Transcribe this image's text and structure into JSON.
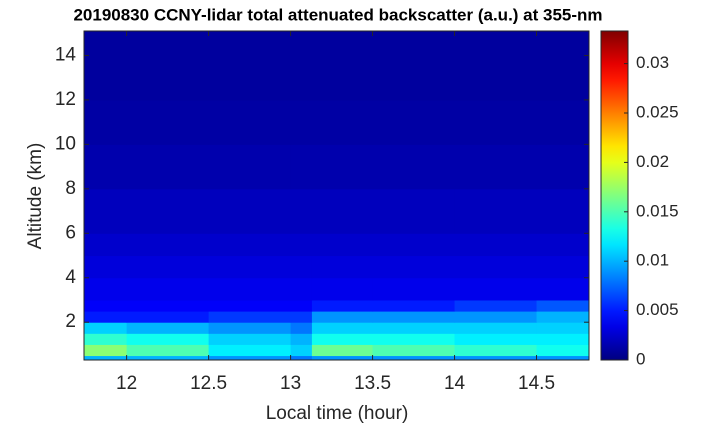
{
  "chart_data": {
    "type": "heatmap",
    "title": "20190830 CCNY-lidar total attenuated backscatter (a.u.) at 355-nm",
    "x_label": "Local time (hour)",
    "y_label": "Altitude (km)",
    "colormap": "jet",
    "x": [
      11.74,
      12.0,
      12.5,
      13.0,
      13.13,
      13.5,
      14.0,
      14.5,
      14.82
    ],
    "y": [
      0.3,
      0.5,
      1.0,
      1.5,
      2.0,
      2.5,
      3.0,
      4.0,
      5.0,
      6.0,
      8.0,
      10.0,
      12.0,
      15.1
    ],
    "z": [
      [
        0.01,
        0.01,
        0.009,
        0.008,
        0.009,
        0.009,
        0.009,
        0.009
      ],
      [
        0.017,
        0.015,
        0.012,
        0.011,
        0.016,
        0.015,
        0.014,
        0.013
      ],
      [
        0.014,
        0.013,
        0.011,
        0.01,
        0.013,
        0.013,
        0.012,
        0.012
      ],
      [
        0.011,
        0.01,
        0.009,
        0.008,
        0.011,
        0.011,
        0.011,
        0.011
      ],
      [
        0.005,
        0.005,
        0.006,
        0.006,
        0.009,
        0.009,
        0.009,
        0.01
      ],
      [
        0.004,
        0.004,
        0.004,
        0.004,
        0.005,
        0.005,
        0.006,
        0.007
      ],
      [
        0.0035,
        0.0035,
        0.0035,
        0.0035,
        0.0035,
        0.0035,
        0.0035,
        0.0035
      ],
      [
        0.003,
        0.003,
        0.003,
        0.003,
        0.003,
        0.003,
        0.003,
        0.003
      ],
      [
        0.0025,
        0.0025,
        0.0025,
        0.0025,
        0.0025,
        0.0025,
        0.0025,
        0.0025
      ],
      [
        0.002,
        0.002,
        0.002,
        0.002,
        0.002,
        0.002,
        0.002,
        0.002
      ],
      [
        0.0015,
        0.0015,
        0.0015,
        0.0015,
        0.0015,
        0.0015,
        0.0015,
        0.0015
      ],
      [
        0.0012,
        0.0012,
        0.0012,
        0.0012,
        0.0012,
        0.0012,
        0.0012,
        0.0012
      ],
      [
        0.001,
        0.001,
        0.001,
        0.001,
        0.001,
        0.001,
        0.001,
        0.001
      ]
    ],
    "xlim": [
      11.74,
      14.82
    ],
    "ylim": [
      0.3,
      15.1
    ],
    "clim": [
      0,
      0.0333
    ],
    "xticks": [
      12,
      12.5,
      13,
      13.5,
      14,
      14.5
    ],
    "yticks": [
      2,
      4,
      6,
      8,
      10,
      12,
      14
    ],
    "cticks": [
      0,
      0.005,
      0.01,
      0.015,
      0.02,
      0.025,
      0.03
    ]
  }
}
